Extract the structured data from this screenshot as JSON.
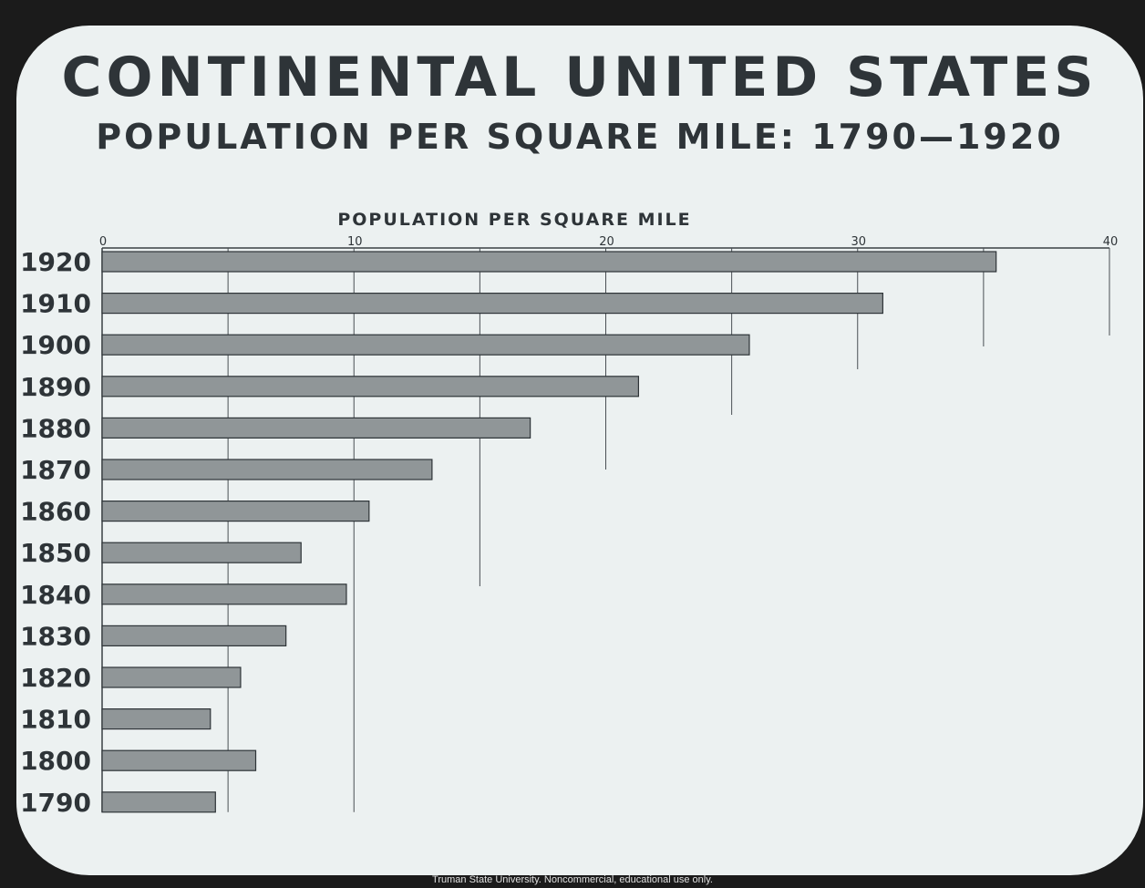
{
  "slide": {
    "title": "CONTINENTAL UNITED STATES",
    "subtitle": "POPULATION PER SQUARE MILE: 1790—1920"
  },
  "chart_data": {
    "type": "bar",
    "orientation": "horizontal",
    "xlabel": "POPULATION PER SQUARE MILE",
    "xlim": [
      0,
      40
    ],
    "xticks": [
      0,
      10,
      20,
      30,
      40
    ],
    "categories": [
      "1920",
      "1910",
      "1900",
      "1890",
      "1880",
      "1870",
      "1860",
      "1850",
      "1840",
      "1830",
      "1820",
      "1810",
      "1800",
      "1790"
    ],
    "values": [
      35.5,
      31.0,
      25.7,
      21.3,
      17.0,
      13.1,
      10.6,
      7.9,
      9.7,
      7.3,
      5.5,
      4.3,
      6.1,
      4.5
    ],
    "bar_color": "#909698"
  },
  "footer": {
    "credit": "Truman State University.  Noncommercial, educational use only."
  }
}
